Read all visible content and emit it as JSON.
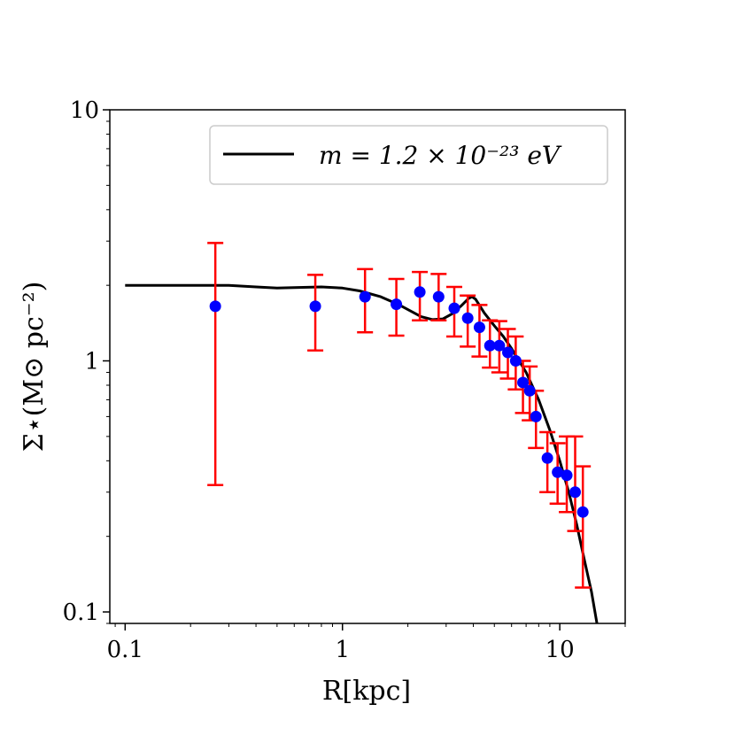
{
  "chart_data": {
    "type": "scatter",
    "title": "",
    "xlabel": "R[kpc]",
    "ylabel": "Σ⋆(M⊙ pc⁻²)",
    "xscale": "log",
    "yscale": "log",
    "xlim": [
      0.085,
      20
    ],
    "ylim": [
      0.09,
      10
    ],
    "grid": false,
    "legend_position": "top-right",
    "x_ticks": [
      {
        "value": 0.1,
        "label": "0.1"
      },
      {
        "value": 1,
        "label": "1"
      },
      {
        "value": 10,
        "label": "10"
      }
    ],
    "y_ticks": [
      {
        "value": 0.1,
        "label": "0.1"
      },
      {
        "value": 1,
        "label": "1"
      },
      {
        "value": 10,
        "label": "10"
      }
    ],
    "series": [
      {
        "name": "m = 1.2 × 10⁻²³ eV",
        "kind": "line",
        "color": "#000000",
        "x": [
          0.1,
          0.15,
          0.2,
          0.3,
          0.4,
          0.5,
          0.6,
          0.8,
          1.0,
          1.2,
          1.5,
          1.8,
          2.0,
          2.3,
          2.6,
          2.9,
          3.2,
          3.5,
          3.8,
          3.95,
          4.1,
          4.5,
          5.0,
          5.5,
          6.0,
          7.0,
          8.0,
          9.0,
          10.0,
          11.0,
          12.0,
          13.0,
          14.0,
          15.0
        ],
        "y": [
          2.0,
          2.0,
          2.0,
          2.0,
          1.97,
          1.95,
          1.96,
          1.97,
          1.95,
          1.9,
          1.8,
          1.68,
          1.6,
          1.5,
          1.46,
          1.47,
          1.54,
          1.65,
          1.77,
          1.8,
          1.76,
          1.55,
          1.38,
          1.25,
          1.12,
          0.9,
          0.7,
          0.53,
          0.4,
          0.3,
          0.22,
          0.16,
          0.12,
          0.085
        ]
      },
      {
        "name": "",
        "kind": "errorbar",
        "color": "#0000ff",
        "error_color": "#ff0000",
        "x": [
          0.26,
          0.75,
          1.27,
          1.77,
          2.27,
          2.77,
          3.27,
          3.77,
          4.27,
          4.77,
          5.27,
          5.77,
          6.27,
          6.77,
          7.27,
          7.77,
          8.77,
          9.77,
          10.77,
          11.77,
          12.77
        ],
        "y": [
          1.65,
          1.65,
          1.8,
          1.68,
          1.88,
          1.8,
          1.62,
          1.48,
          1.36,
          1.15,
          1.15,
          1.08,
          1.0,
          0.82,
          0.76,
          0.6,
          0.41,
          0.36,
          0.35,
          0.3,
          0.25
        ],
        "y_low": [
          0.32,
          1.1,
          1.3,
          1.26,
          1.45,
          1.45,
          1.25,
          1.14,
          1.04,
          0.94,
          0.9,
          0.85,
          0.77,
          0.62,
          0.58,
          0.45,
          0.3,
          0.27,
          0.25,
          0.21,
          0.125
        ],
        "y_high": [
          2.95,
          2.2,
          2.32,
          2.12,
          2.26,
          2.22,
          1.97,
          1.82,
          1.67,
          1.45,
          1.44,
          1.34,
          1.25,
          1.0,
          0.95,
          0.76,
          0.52,
          0.47,
          0.5,
          0.5,
          0.38
        ]
      }
    ]
  }
}
